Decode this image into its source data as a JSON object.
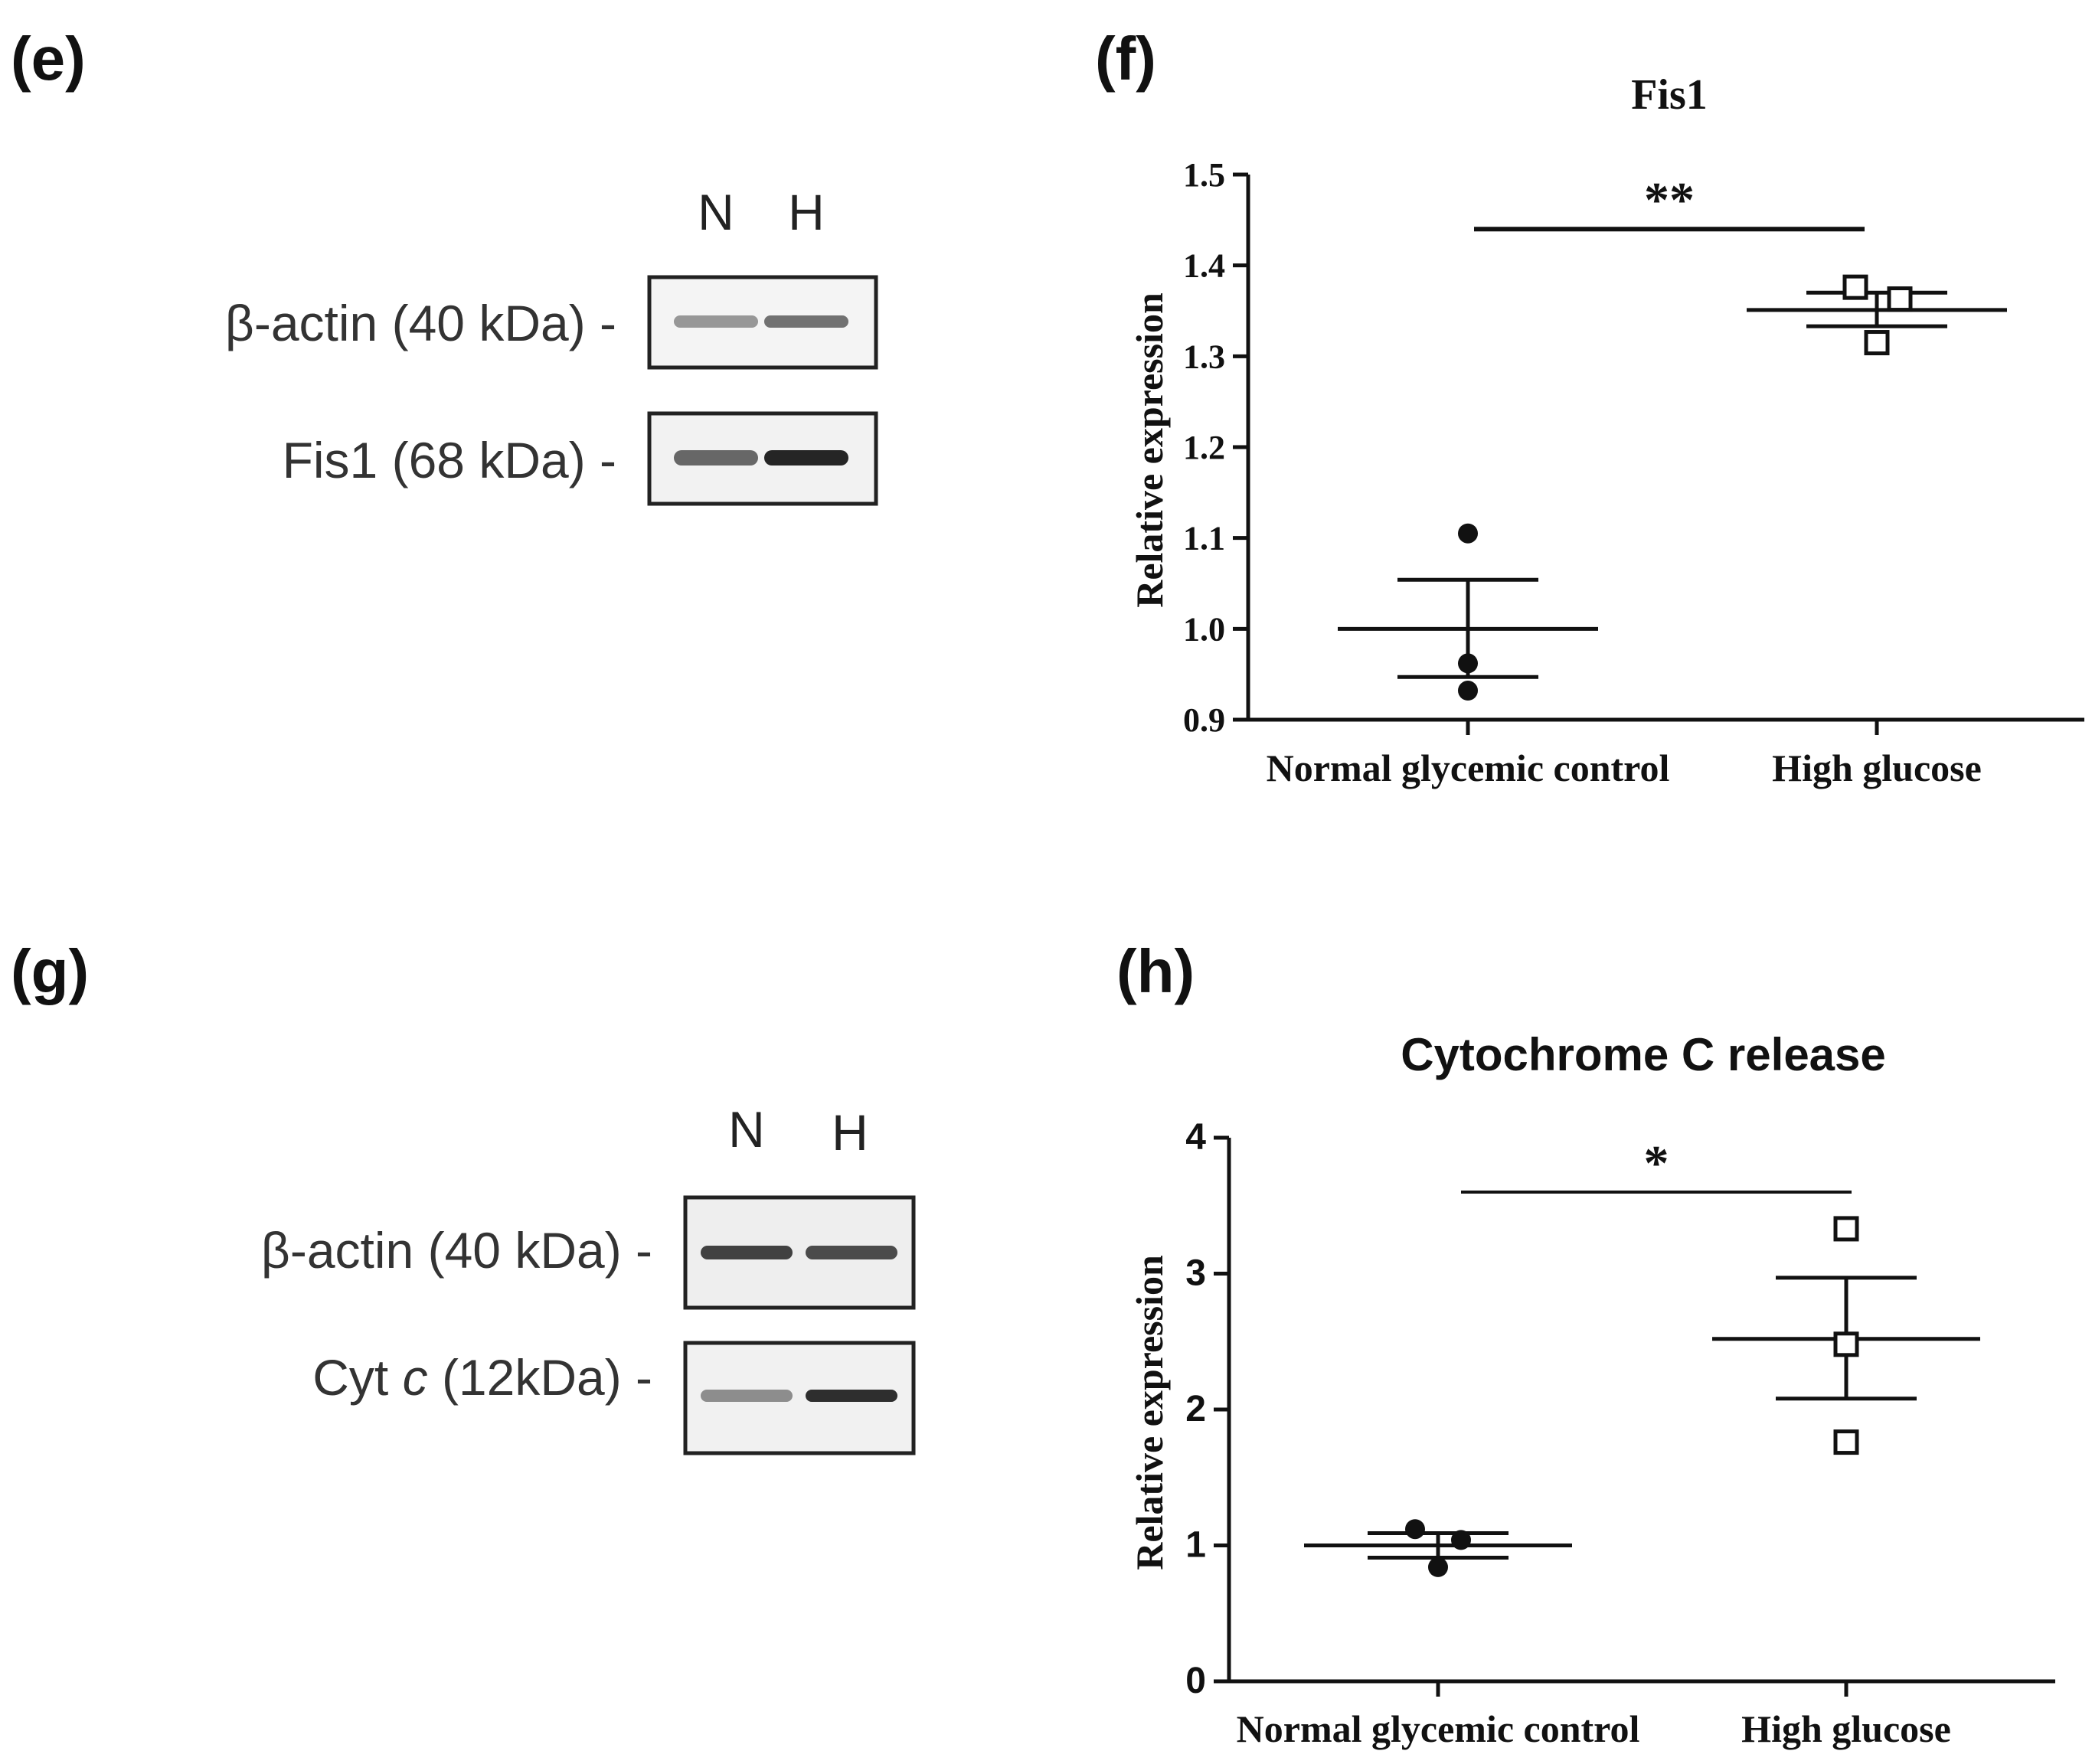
{
  "panels": {
    "e": "(e)",
    "f": "(f)",
    "g": "(g)",
    "h": "(h)"
  },
  "blot_e": {
    "lanes": [
      "N",
      "H"
    ],
    "bands": [
      {
        "label": "β-actin (40 kDa) -",
        "intensity": [
          0.35,
          0.55
        ]
      },
      {
        "label": "Fis1 (68 kDa) -",
        "intensity": [
          0.6,
          0.95
        ]
      }
    ]
  },
  "blot_g": {
    "lanes": [
      "N",
      "H"
    ],
    "bands": [
      {
        "label_prefix": "β-actin (40 kDa) -",
        "intensity": [
          0.8,
          0.75
        ]
      },
      {
        "label_prefix": "Cyt ",
        "label_italic": "c",
        "label_suffix": " (12kDa) -",
        "intensity": [
          0.4,
          0.9
        ]
      }
    ]
  },
  "chart_data": [
    {
      "type": "scatter",
      "title": "Fis1",
      "ylabel": "Relative expression",
      "xlabel": "",
      "categories": [
        "Normal glycemic control",
        "High glucose"
      ],
      "ylim": [
        0.9,
        1.5
      ],
      "yticks": [
        "0.9",
        "1.0",
        "1.1",
        "1.2",
        "1.3",
        "1.4",
        "1.5"
      ],
      "series": [
        {
          "name": "Normal glycemic control",
          "marker": "filled-circle",
          "points": [
            1.105,
            0.962,
            0.932
          ],
          "mean": 1.0,
          "sem": [
            0.947,
            1.054
          ]
        },
        {
          "name": "High glucose",
          "marker": "open-square",
          "points": [
            1.376,
            1.363,
            1.315
          ],
          "mean": 1.351,
          "sem": [
            1.333,
            1.37
          ]
        }
      ],
      "significance": {
        "label": "**",
        "y": 1.44
      }
    },
    {
      "type": "scatter",
      "title": "Cytochrome C release",
      "ylabel": "Relative expression",
      "xlabel": "",
      "categories": [
        "Normal glycemic control",
        "High glucose"
      ],
      "ylim": [
        0,
        4
      ],
      "yticks": [
        "0",
        "1",
        "2",
        "3",
        "4"
      ],
      "series": [
        {
          "name": "Normal glycemic control",
          "marker": "filled-circle",
          "points": [
            1.12,
            1.04,
            0.84
          ],
          "mean": 1.0,
          "sem": [
            0.91,
            1.09
          ]
        },
        {
          "name": "High glucose",
          "marker": "open-square",
          "points": [
            3.33,
            2.48,
            1.76
          ],
          "mean": 2.52,
          "sem": [
            2.08,
            2.97
          ]
        }
      ],
      "significance": {
        "label": "*",
        "y": 3.6
      }
    }
  ]
}
